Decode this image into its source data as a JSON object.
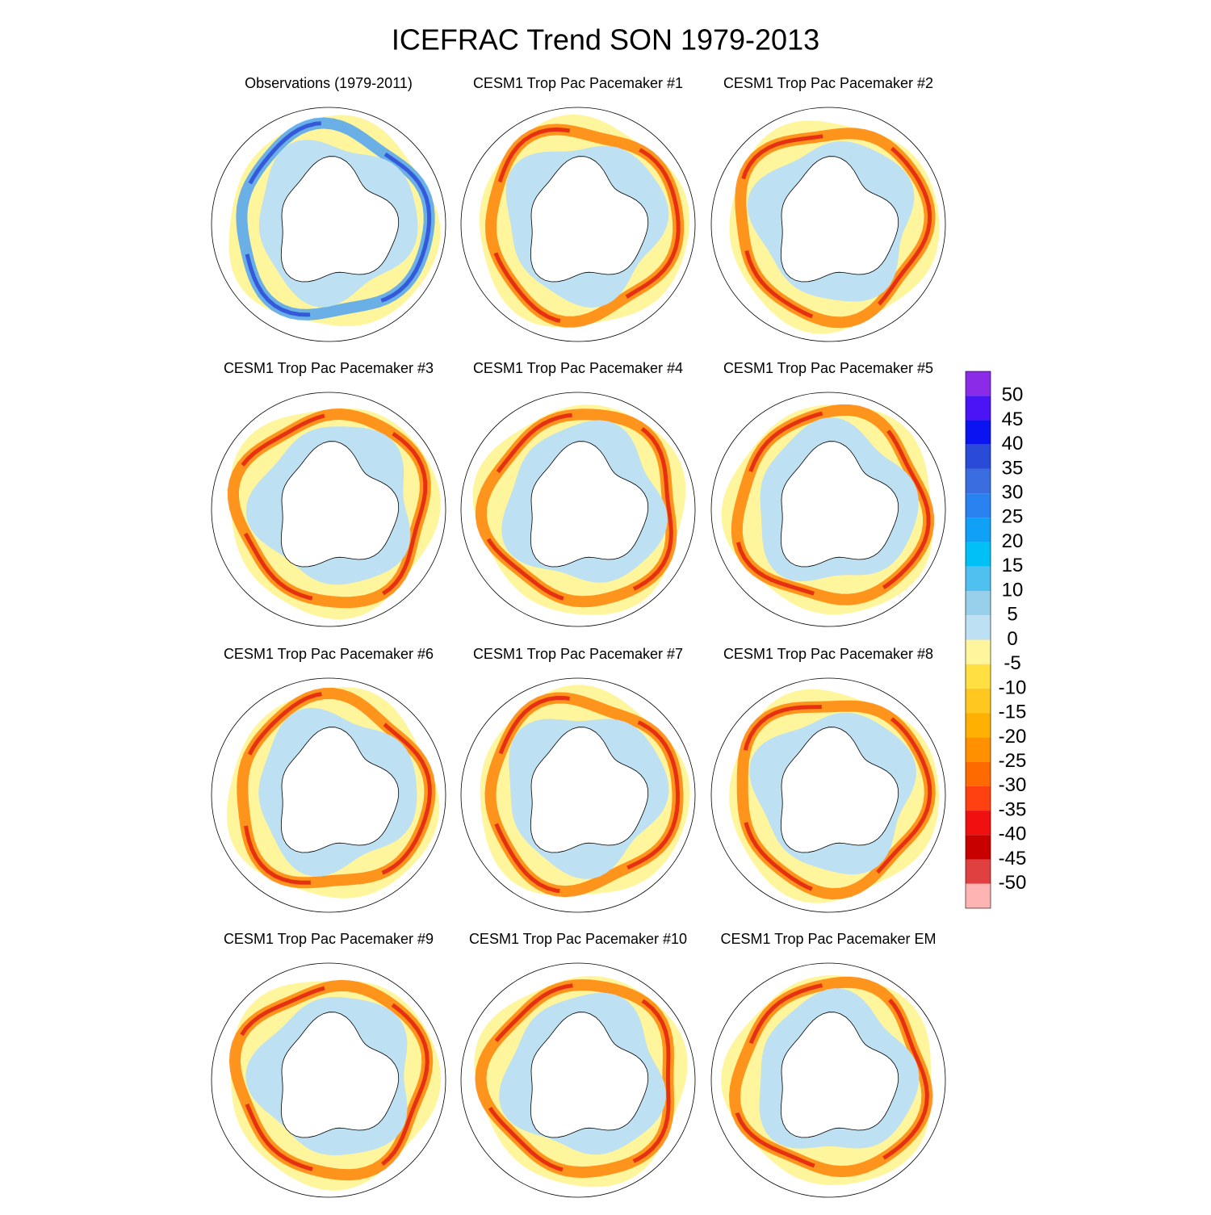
{
  "title": "ICEFRAC Trend SON 1979-2013",
  "panels": [
    {
      "title": "Observations (1979-2011)"
    },
    {
      "title": "CESM1 Trop Pac Pacemaker #1"
    },
    {
      "title": "CESM1 Trop Pac Pacemaker #2"
    },
    {
      "title": "CESM1 Trop Pac Pacemaker #3"
    },
    {
      "title": "CESM1 Trop Pac Pacemaker #4"
    },
    {
      "title": "CESM1 Trop Pac Pacemaker #5"
    },
    {
      "title": "CESM1 Trop Pac Pacemaker #6"
    },
    {
      "title": "CESM1 Trop Pac Pacemaker #7"
    },
    {
      "title": "CESM1 Trop Pac Pacemaker #8"
    },
    {
      "title": "CESM1 Trop Pac Pacemaker #9"
    },
    {
      "title": "CESM1 Trop Pac Pacemaker #10"
    },
    {
      "title": "CESM1 Trop Pac Pacemaker EM"
    }
  ],
  "colorbar": {
    "labels": [
      50,
      45,
      40,
      35,
      30,
      25,
      20,
      15,
      10,
      5,
      0,
      -5,
      -10,
      -15,
      -20,
      -25,
      -30,
      -35,
      -40,
      -45,
      -50
    ],
    "colors": [
      "#8b2be8",
      "#4a14f5",
      "#0a14f0",
      "#2a4ad8",
      "#3a6ee0",
      "#2a82f0",
      "#10a0f5",
      "#00c0f5",
      "#50c0f0",
      "#98cfeb",
      "#bde0f2",
      "#fff59c",
      "#ffe040",
      "#ffc820",
      "#ffb000",
      "#ff9000",
      "#ff6a00",
      "#ff4010",
      "#f01010",
      "#c80000",
      "#e04040",
      "#ffb4b4"
    ]
  }
}
